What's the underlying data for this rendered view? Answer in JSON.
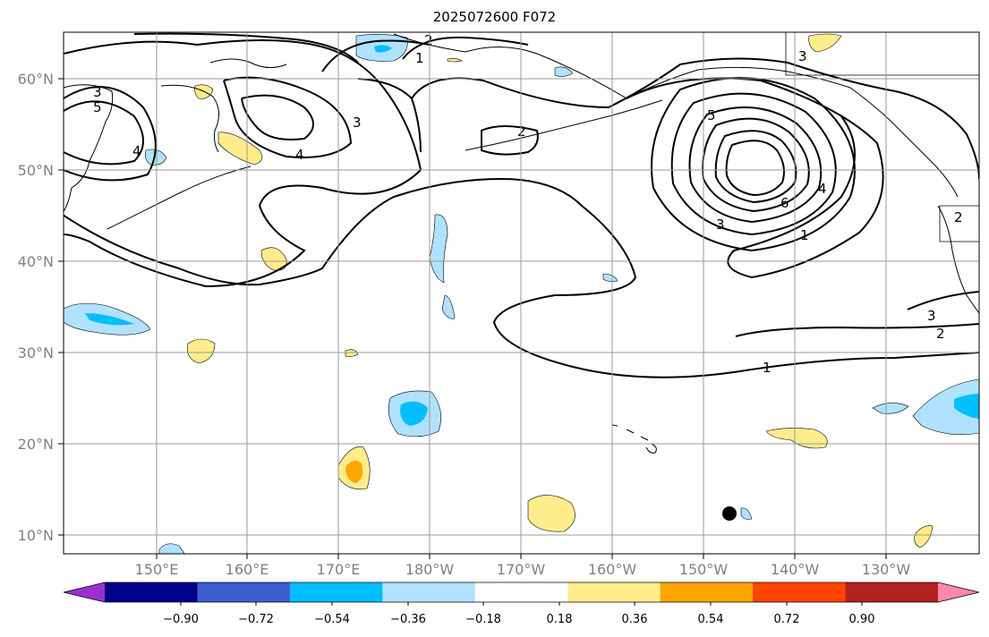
{
  "title": "2025072600 F072",
  "latitude_labels": [
    "60°N",
    "50°N",
    "40°N",
    "30°N",
    "20°N",
    "10°N"
  ],
  "longitude_labels": [
    "150°E",
    "160°E",
    "170°E",
    "180°W",
    "170°W",
    "160°W",
    "150°W",
    "140°W",
    "130°W"
  ],
  "contour_labels": [
    "1",
    "2",
    "3",
    "4",
    "5",
    "6"
  ],
  "colorbar": {
    "ticks": [
      "−0.90",
      "−0.72",
      "−0.54",
      "−0.36",
      "−0.18",
      "0.18",
      "0.36",
      "0.54",
      "0.72",
      "0.90"
    ],
    "colors": [
      "#9b30d0",
      "#00008b",
      "#3a5fcd",
      "#00bfff",
      "#b0e2ff",
      "#ffffff",
      "#ffec8b",
      "#ffa500",
      "#ff4500",
      "#b22222",
      "#ff88aa"
    ]
  },
  "shading_colors": {
    "light_blue": "#b0e2ff",
    "blue": "#00bfff",
    "light_yellow": "#ffec8b",
    "orange": "#ffa500"
  },
  "marker": "black-dot"
}
